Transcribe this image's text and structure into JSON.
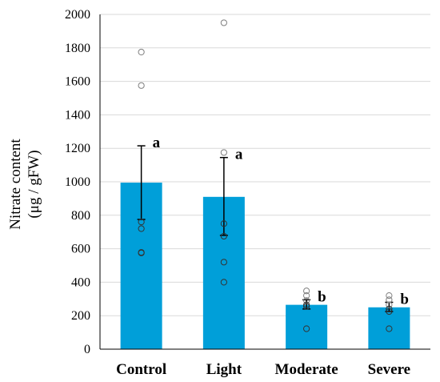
{
  "chart_data": {
    "type": "bar",
    "title": "",
    "xlabel": "",
    "ylabel": [
      "Nitrate content",
      "(μg / gFW)"
    ],
    "ylim": [
      0,
      2000
    ],
    "yticks": [
      0,
      200,
      400,
      600,
      800,
      1000,
      1200,
      1400,
      1600,
      1800,
      2000
    ],
    "ytick_labels": [
      "0",
      "200",
      "400",
      "600",
      "800",
      "1000",
      "1200",
      "1400",
      "1600",
      "1800",
      "2000"
    ],
    "grid": "horizontal",
    "bar_color": "#009fd9",
    "categories": [
      "Control",
      "Light",
      "Moderate",
      "Severe"
    ],
    "values": [
      995,
      910,
      265,
      250
    ],
    "error_upper": [
      1215,
      1145,
      295,
      280
    ],
    "error_lower": [
      775,
      680,
      240,
      225
    ],
    "significance": [
      "a",
      "a",
      "b",
      "b"
    ],
    "points": [
      [
        1775,
        1575,
        760,
        720,
        575,
        578
      ],
      [
        1950,
        1175,
        750,
        675,
        520,
        400
      ],
      [
        348,
        320,
        290,
        265,
        255,
        122
      ],
      [
        320,
        295,
        265,
        240,
        225,
        122
      ]
    ]
  }
}
